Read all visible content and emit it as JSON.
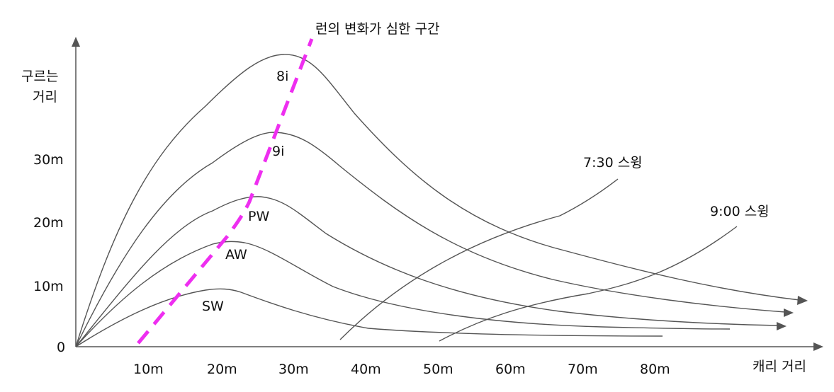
{
  "y_axis_label": [
    "구르는",
    "거리"
  ],
  "x_axis_label": "캐리 거리",
  "y_ticks": [
    "30m",
    "20m",
    "10m",
    "0"
  ],
  "x_ticks": [
    "10m",
    "20m",
    "30m",
    "40m",
    "50m",
    "60m",
    "70m",
    "80m"
  ],
  "clubs": [
    "8i",
    "9i",
    "PW",
    "AW",
    "SW"
  ],
  "swings": [
    "7:30 스윙",
    "9:00 스윙"
  ],
  "annotation": "런의 변화가 심한 구간",
  "colors": {
    "curves": "#555555",
    "dashed_zone": "#ee2ef0"
  }
}
